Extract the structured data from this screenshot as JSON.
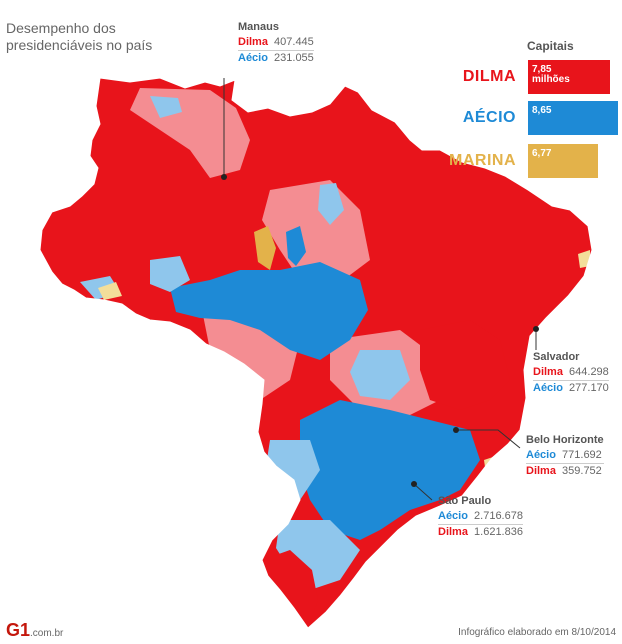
{
  "title_line1": "Desempenho dos",
  "title_line2": "presidenciáveis no país",
  "colors": {
    "dilma_strong": "#e8141b",
    "dilma_light": "#f48d92",
    "aecio_strong": "#1e8ad6",
    "aecio_light": "#8fc6ec",
    "marina": "#e3b24a",
    "marina_light": "#f3de9a"
  },
  "callouts": {
    "manaus": {
      "city": "Manaus",
      "rows": [
        {
          "candidate": "Dilma",
          "votes": "407.445"
        },
        {
          "candidate": "Aécio",
          "votes": "231.055"
        }
      ]
    },
    "salvador": {
      "city": "Salvador",
      "rows": [
        {
          "candidate": "Dilma",
          "votes": "644.298"
        },
        {
          "candidate": "Aécio",
          "votes": "277.170"
        }
      ]
    },
    "belo_horizonte": {
      "city": "Belo Horizonte",
      "rows": [
        {
          "candidate": "Aécio",
          "votes": "771.692"
        },
        {
          "candidate": "Dilma",
          "votes": "359.752"
        }
      ]
    },
    "sao_paulo": {
      "city": "São Paulo",
      "rows": [
        {
          "candidate": "Aécio",
          "votes": "2.716.678"
        },
        {
          "candidate": "Dilma",
          "votes": "1.621.836"
        }
      ]
    }
  },
  "legend": {
    "title": "Capitais",
    "items": [
      {
        "name": "DILMA",
        "value": "7,85",
        "unit": "milhões",
        "share": 0.91,
        "color": "#e8141b"
      },
      {
        "name": "AÉCIO",
        "value": "8,65",
        "unit": "",
        "share": 1.0,
        "color": "#1e8ad6"
      },
      {
        "name": "MARINA",
        "value": "6,77",
        "unit": "",
        "share": 0.78,
        "color": "#e3b24a"
      }
    ]
  },
  "footer": {
    "logo": "G1",
    "logo_suffix": ".com.br",
    "credit": "Infográfico elaborado em 8/10/2014"
  }
}
